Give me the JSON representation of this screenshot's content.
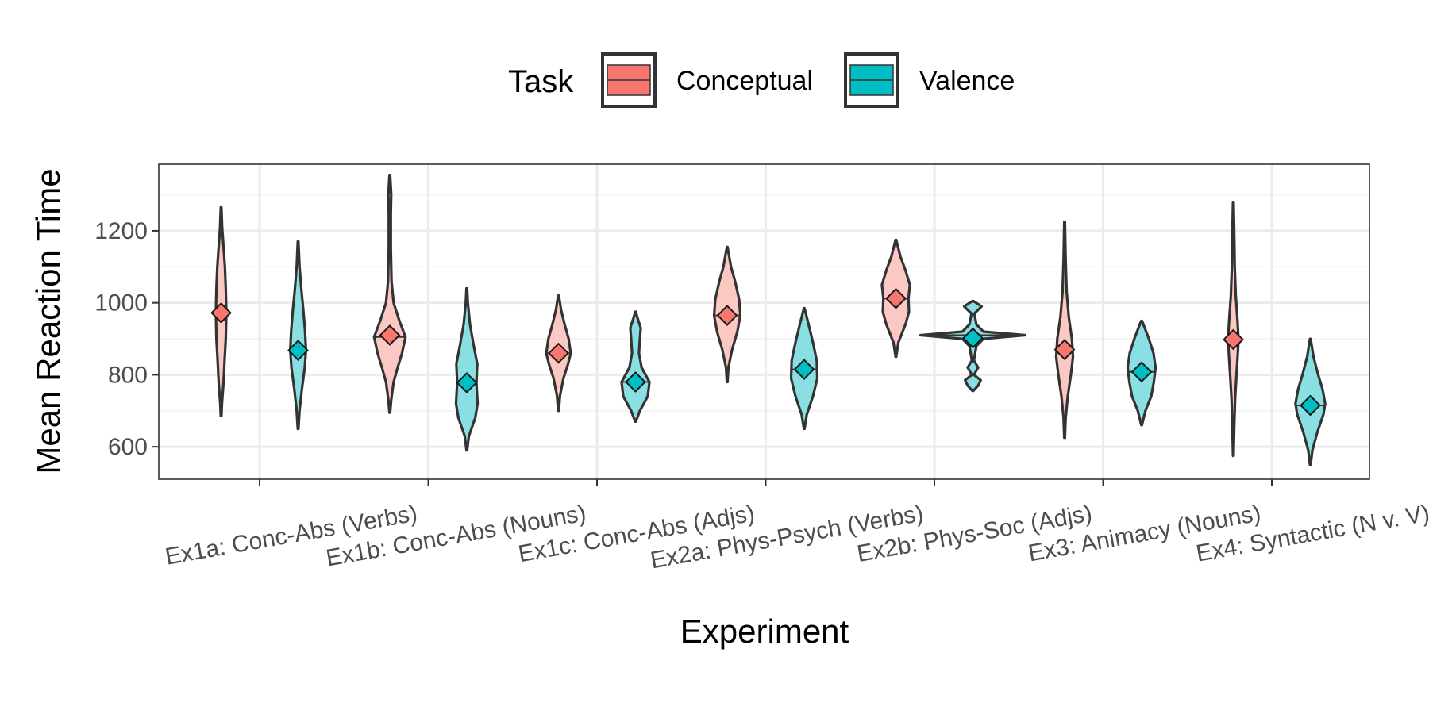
{
  "chart_data": {
    "type": "violin",
    "title": "",
    "xlabel": "Experiment",
    "ylabel": "Mean Reaction Time",
    "ylim": [
      510,
      1385
    ],
    "y_ticks": [
      600,
      800,
      1000,
      1200
    ],
    "grid": true,
    "legend": {
      "title": "Task",
      "position": "top",
      "entries": [
        {
          "label": "Conceptual",
          "fill": "#F8766D"
        },
        {
          "label": "Valence",
          "fill": "#00BFC4"
        }
      ]
    },
    "categories": [
      "Ex1a: Conc-Abs (Verbs)",
      "Ex1b: Conc-Abs (Nouns)",
      "Ex1c: Conc-Abs (Adjs)",
      "Ex2a: Phys-Psych (Verbs)",
      "Ex2b: Phys-Soc (Adjs)",
      "Ex3: Animacy (Nouns)",
      "Ex4: Syntactic (N v. V)"
    ],
    "series": [
      {
        "name": "Conceptual",
        "violin_fill": "#FCC8C4",
        "marker_fill": "#F8766D",
        "groups": [
          {
            "min": 685,
            "max": 1265,
            "mean": 972,
            "median": 972,
            "profile": [
              [
                685,
                0.02
              ],
              [
                720,
                0.05
              ],
              [
                780,
                0.14
              ],
              [
                840,
                0.2
              ],
              [
                900,
                0.27
              ],
              [
                972,
                0.3
              ],
              [
                1040,
                0.27
              ],
              [
                1100,
                0.22
              ],
              [
                1160,
                0.13
              ],
              [
                1210,
                0.06
              ],
              [
                1265,
                0.02
              ]
            ]
          },
          {
            "min": 695,
            "max": 1355,
            "mean": 910,
            "median": 905,
            "profile": [
              [
                695,
                0.02
              ],
              [
                730,
                0.08
              ],
              [
                780,
                0.22
              ],
              [
                820,
                0.45
              ],
              [
                860,
                0.7
              ],
              [
                905,
                0.9
              ],
              [
                950,
                0.55
              ],
              [
                1000,
                0.22
              ],
              [
                1060,
                0.1
              ],
              [
                1150,
                0.06
              ],
              [
                1250,
                0.06
              ],
              [
                1300,
                0.08
              ],
              [
                1355,
                0.02
              ]
            ]
          },
          {
            "min": 700,
            "max": 1020,
            "mean": 860,
            "median": 860,
            "profile": [
              [
                700,
                0.02
              ],
              [
                740,
                0.08
              ],
              [
                790,
                0.28
              ],
              [
                830,
                0.55
              ],
              [
                860,
                0.7
              ],
              [
                900,
                0.58
              ],
              [
                940,
                0.35
              ],
              [
                980,
                0.15
              ],
              [
                1020,
                0.02
              ]
            ]
          },
          {
            "min": 780,
            "max": 1155,
            "mean": 965,
            "median": 965,
            "profile": [
              [
                780,
                0.02
              ],
              [
                820,
                0.07
              ],
              [
                870,
                0.28
              ],
              [
                920,
                0.58
              ],
              [
                965,
                0.75
              ],
              [
                1010,
                0.68
              ],
              [
                1060,
                0.45
              ],
              [
                1100,
                0.22
              ],
              [
                1155,
                0.02
              ]
            ]
          },
          {
            "min": 850,
            "max": 1175,
            "mean": 1012,
            "median": 1012,
            "profile": [
              [
                850,
                0.02
              ],
              [
                890,
                0.14
              ],
              [
                940,
                0.55
              ],
              [
                975,
                0.75
              ],
              [
                1012,
                0.72
              ],
              [
                1050,
                0.8
              ],
              [
                1090,
                0.55
              ],
              [
                1130,
                0.25
              ],
              [
                1175,
                0.02
              ]
            ]
          },
          {
            "min": 625,
            "max": 1225,
            "mean": 870,
            "median": 870,
            "profile": [
              [
                625,
                0.02
              ],
              [
                680,
                0.06
              ],
              [
                740,
                0.18
              ],
              [
                800,
                0.36
              ],
              [
                850,
                0.48
              ],
              [
                900,
                0.42
              ],
              [
                960,
                0.24
              ],
              [
                1030,
                0.12
              ],
              [
                1120,
                0.06
              ],
              [
                1225,
                0.02
              ]
            ]
          },
          {
            "min": 575,
            "max": 1280,
            "mean": 898,
            "median": 898,
            "profile": [
              [
                575,
                0.02
              ],
              [
                650,
                0.05
              ],
              [
                730,
                0.1
              ],
              [
                800,
                0.18
              ],
              [
                860,
                0.26
              ],
              [
                898,
                0.3
              ],
              [
                950,
                0.24
              ],
              [
                1020,
                0.14
              ],
              [
                1100,
                0.08
              ],
              [
                1200,
                0.05
              ],
              [
                1280,
                0.02
              ]
            ]
          }
        ]
      },
      {
        "name": "Valence",
        "violin_fill": "#8ADFE2",
        "marker_fill": "#00BFC4",
        "groups": [
          {
            "min": 650,
            "max": 1170,
            "mean": 868,
            "median": 868,
            "profile": [
              [
                650,
                0.02
              ],
              [
                700,
                0.08
              ],
              [
                760,
                0.22
              ],
              [
                820,
                0.38
              ],
              [
                868,
                0.45
              ],
              [
                920,
                0.4
              ],
              [
                980,
                0.3
              ],
              [
                1040,
                0.18
              ],
              [
                1100,
                0.08
              ],
              [
                1170,
                0.02
              ]
            ]
          },
          {
            "min": 590,
            "max": 1040,
            "mean": 778,
            "median": 778,
            "profile": [
              [
                590,
                0.02
              ],
              [
                630,
                0.12
              ],
              [
                680,
                0.48
              ],
              [
                720,
                0.62
              ],
              [
                778,
                0.55
              ],
              [
                830,
                0.6
              ],
              [
                880,
                0.4
              ],
              [
                940,
                0.18
              ],
              [
                1000,
                0.06
              ],
              [
                1040,
                0.02
              ]
            ]
          },
          {
            "min": 670,
            "max": 975,
            "mean": 780,
            "median": 780,
            "profile": [
              [
                670,
                0.02
              ],
              [
                700,
                0.25
              ],
              [
                740,
                0.7
              ],
              [
                780,
                0.8
              ],
              [
                820,
                0.35
              ],
              [
                860,
                0.2
              ],
              [
                900,
                0.25
              ],
              [
                930,
                0.3
              ],
              [
                960,
                0.1
              ],
              [
                975,
                0.02
              ]
            ]
          },
          {
            "min": 650,
            "max": 985,
            "mean": 815,
            "median": 815,
            "profile": [
              [
                650,
                0.02
              ],
              [
                690,
                0.15
              ],
              [
                740,
                0.5
              ],
              [
                790,
                0.75
              ],
              [
                840,
                0.72
              ],
              [
                890,
                0.5
              ],
              [
                940,
                0.25
              ],
              [
                985,
                0.02
              ]
            ]
          },
          {
            "min": 755,
            "max": 1005,
            "mean": 902,
            "median": 910,
            "profile": [
              [
                755,
                0.02
              ],
              [
                770,
                0.3
              ],
              [
                785,
                0.45
              ],
              [
                800,
                0.06
              ],
              [
                820,
                0.3
              ],
              [
                840,
                0.06
              ],
              [
                880,
                0.2
              ],
              [
                900,
                0.6
              ],
              [
                910,
                3.0
              ],
              [
                920,
                0.6
              ],
              [
                940,
                0.2
              ],
              [
                970,
                0.08
              ],
              [
                990,
                0.5
              ],
              [
                1005,
                0.02
              ]
            ]
          },
          {
            "min": 660,
            "max": 950,
            "mean": 808,
            "median": 808,
            "profile": [
              [
                660,
                0.02
              ],
              [
                700,
                0.22
              ],
              [
                740,
                0.55
              ],
              [
                780,
                0.7
              ],
              [
                820,
                0.8
              ],
              [
                860,
                0.68
              ],
              [
                900,
                0.42
              ],
              [
                930,
                0.18
              ],
              [
                950,
                0.02
              ]
            ]
          },
          {
            "min": 550,
            "max": 900,
            "mean": 715,
            "median": 715,
            "profile": [
              [
                550,
                0.02
              ],
              [
                590,
                0.12
              ],
              [
                640,
                0.4
              ],
              [
                690,
                0.75
              ],
              [
                720,
                0.85
              ],
              [
                760,
                0.7
              ],
              [
                800,
                0.45
              ],
              [
                850,
                0.18
              ],
              [
                900,
                0.02
              ]
            ]
          }
        ]
      }
    ]
  }
}
